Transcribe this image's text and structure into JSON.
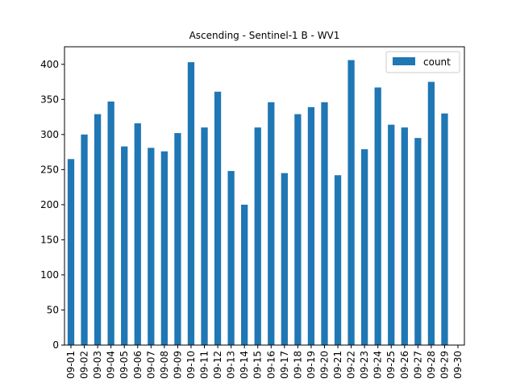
{
  "chart_data": {
    "type": "bar",
    "title": "Ascending - Sentinel-1 B - WV1",
    "xlabel": "",
    "ylabel": "",
    "categories": [
      "09-01",
      "09-02",
      "09-03",
      "09-04",
      "09-05",
      "09-06",
      "09-07",
      "09-08",
      "09-09",
      "09-10",
      "09-11",
      "09-12",
      "09-13",
      "09-14",
      "09-15",
      "09-16",
      "09-17",
      "09-18",
      "09-19",
      "09-20",
      "09-21",
      "09-22",
      "09-23",
      "09-24",
      "09-25",
      "09-26",
      "09-27",
      "09-28",
      "09-29",
      "09-30"
    ],
    "series": [
      {
        "name": "count",
        "color": "#1f77b4",
        "values": [
          265,
          300,
          329,
          347,
          283,
          316,
          281,
          276,
          302,
          403,
          310,
          361,
          248,
          200,
          310,
          346,
          245,
          329,
          339,
          346,
          242,
          406,
          279,
          367,
          314,
          310,
          295,
          375,
          330,
          0
        ]
      }
    ],
    "ylim": [
      0,
      425
    ],
    "yticks": [
      0,
      50,
      100,
      150,
      200,
      250,
      300,
      350,
      400
    ],
    "grid": false,
    "legend_position": "top-right"
  }
}
